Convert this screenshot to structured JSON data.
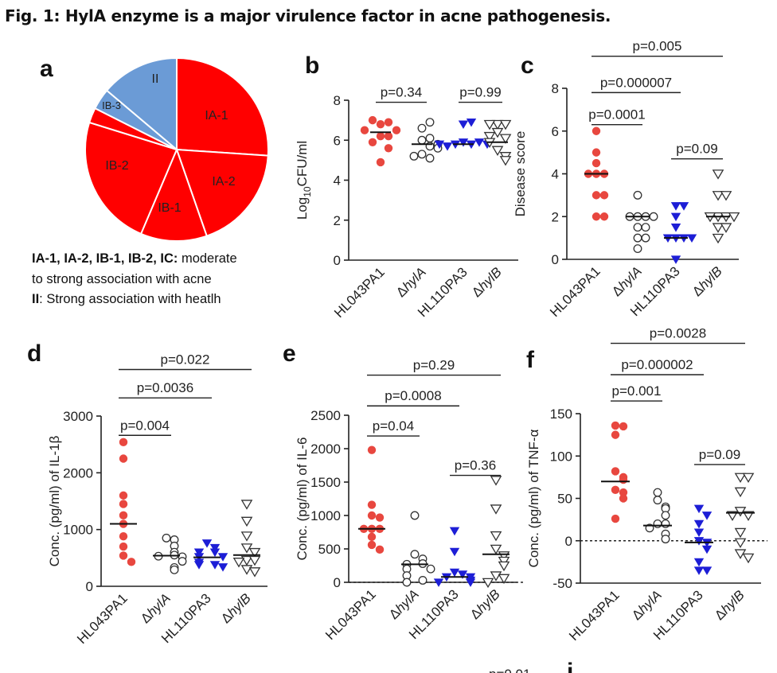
{
  "figure": {
    "title": "Fig. 1: HylA enzyme is a major virulence factor in acne pathogenesis.",
    "legend_line1_bold": "IA-1, IA-2, IB-1, IB-2, IC:",
    "legend_line1_rest": " moderate",
    "legend_line2": "to strong association with acne",
    "legend_line3_bold": "II",
    "legend_line3_rest": ": Strong association with heatlh",
    "bottom_cutoff_text": "p=0.01",
    "bottom_cutoff_letter": "i"
  },
  "colors": {
    "red": "#e8473f",
    "blue": "#1d1ed6",
    "pie_red": "#ff0000",
    "pie_blue": "#6b9bd6"
  },
  "chart_data": [
    {
      "panel": "a",
      "type": "pie",
      "slices": [
        {
          "label": "IA-1",
          "value": 24.5,
          "color": "pie_red"
        },
        {
          "label": "IA-2",
          "value": 17.5,
          "color": "pie_red"
        },
        {
          "label": "IB-1",
          "value": 11,
          "color": "pie_red"
        },
        {
          "label": "IB-2",
          "value": 22,
          "color": "pie_red"
        },
        {
          "label": "IC",
          "value": 2.5,
          "color": "pie_red"
        },
        {
          "label": "IB-3",
          "value": 3.5,
          "color": "pie_blue"
        },
        {
          "label": "II",
          "value": 13,
          "color": "pie_blue"
        }
      ]
    },
    {
      "panel": "b",
      "type": "scatter",
      "ylabel_main": "Log",
      "ylabel_sub": "10",
      "ylabel_rest": "CFU/ml",
      "ylim": [
        0,
        8
      ],
      "yticks": [
        0,
        2,
        4,
        6,
        8
      ],
      "categories": [
        "HL043PA1",
        "ΔhylA",
        "HL110PA3",
        "ΔhylB"
      ],
      "groups": [
        {
          "marker": "circle-filled",
          "color": "red",
          "median": 6.4,
          "values": [
            6.8,
            6.9,
            7.0,
            6.2,
            6.2,
            6.5,
            6.5,
            5.9,
            5.6,
            4.9
          ]
        },
        {
          "marker": "circle-open",
          "median": 5.8,
          "values": [
            6.6,
            6.9,
            6.0,
            6.1,
            5.7,
            5.8,
            5.3,
            5.6,
            5.1,
            5.2
          ]
        },
        {
          "marker": "tri-filled",
          "color": "blue",
          "median": 5.8,
          "values": [
            6.8,
            6.9,
            5.9,
            5.8,
            5.8,
            5.9,
            5.7,
            5.8,
            5.8
          ]
        },
        {
          "marker": "tri-open",
          "median": 5.9,
          "values": [
            6.8,
            6.8,
            6.8,
            6.4,
            6.1,
            6.2,
            5.9,
            5.5,
            5.2,
            5.0
          ]
        }
      ],
      "comparisons": [
        {
          "from": 0,
          "to": 1,
          "y": 7.9,
          "label": "p=0.34"
        },
        {
          "from": 2,
          "to": 3,
          "y": 7.9,
          "label": "p=0.99"
        }
      ]
    },
    {
      "panel": "c",
      "type": "scatter",
      "ylabel": "Disease score",
      "ylim": [
        0,
        8
      ],
      "yticks": [
        0,
        2,
        4,
        6,
        8
      ],
      "categories": [
        "HL043PA1",
        "ΔhylA",
        "HL110PA3",
        "ΔhylB"
      ],
      "groups": [
        {
          "marker": "circle-filled",
          "color": "red",
          "median": 4,
          "values": [
            6,
            5,
            4.5,
            4,
            4,
            4,
            3,
            3,
            2,
            2
          ]
        },
        {
          "marker": "circle-open",
          "median": 2,
          "values": [
            3,
            2,
            2,
            2,
            2,
            1.5,
            1.5,
            1,
            1,
            0.5
          ]
        },
        {
          "marker": "tri-filled",
          "color": "blue",
          "median": 1,
          "values": [
            2.5,
            2.5,
            2,
            1.5,
            1,
            1,
            1,
            1,
            0
          ]
        },
        {
          "marker": "tri-open",
          "median": 2,
          "values": [
            4,
            3,
            3,
            2,
            2,
            2,
            2,
            1.5,
            1.5,
            1
          ]
        }
      ],
      "comparisons": [
        {
          "from": 0,
          "to": 3,
          "y": 9.5,
          "label": "p=0.005"
        },
        {
          "from": 0,
          "to": 2,
          "y": 7.8,
          "label": "p=0.000007"
        },
        {
          "from": 0,
          "to": 1,
          "y": 6.3,
          "label": "p=0.0001"
        },
        {
          "from": 2,
          "to": 3,
          "y": 4.7,
          "label": "p=0.09"
        }
      ]
    },
    {
      "panel": "d",
      "type": "scatter",
      "ylabel": "Conc. (pg/ml) of IL-1β",
      "ylim": [
        0,
        3000
      ],
      "yticks": [
        0,
        1000,
        2000,
        3000
      ],
      "categories": [
        "HL043PA1",
        "ΔhylA",
        "HL110PA3",
        "ΔhylB"
      ],
      "groups": [
        {
          "marker": "circle-filled",
          "color": "red",
          "median": 1100,
          "values": [
            2540,
            2250,
            1600,
            1450,
            1250,
            1100,
            880,
            700,
            540,
            430
          ]
        },
        {
          "marker": "circle-open",
          "median": 540,
          "values": [
            850,
            820,
            710,
            600,
            550,
            530,
            520,
            440,
            330,
            290
          ]
        },
        {
          "marker": "tri-filled",
          "color": "blue",
          "median": 510,
          "values": [
            760,
            680,
            600,
            600,
            520,
            520,
            420,
            380,
            380,
            340
          ]
        },
        {
          "marker": "tri-open",
          "median": 550,
          "values": [
            1450,
            1150,
            890,
            680,
            600,
            460,
            460,
            430,
            300,
            260
          ]
        }
      ],
      "comparisons": [
        {
          "from": 0,
          "to": 3,
          "y": 3820,
          "label": "p=0.022"
        },
        {
          "from": 0,
          "to": 2,
          "y": 3320,
          "label": "p=0.0036"
        },
        {
          "from": 0,
          "to": 1,
          "y": 2660,
          "label": "p=0.004"
        }
      ]
    },
    {
      "panel": "e",
      "type": "scatter",
      "ylabel": "Conc. (pg/ml) of IL-6",
      "ylim": [
        0,
        2500
      ],
      "yticks": [
        0,
        500,
        1000,
        1500,
        2000,
        2500
      ],
      "baseline_dotted": 0,
      "categories": [
        "HL043PA1",
        "ΔhylA",
        "HL110PA3",
        "ΔhylB"
      ],
      "groups": [
        {
          "marker": "circle-filled",
          "color": "red",
          "median": 800,
          "values": [
            1980,
            1160,
            1000,
            970,
            800,
            800,
            800,
            680,
            560,
            490
          ]
        },
        {
          "marker": "circle-open",
          "median": 270,
          "values": [
            1000,
            420,
            350,
            280,
            270,
            200,
            200,
            100,
            30,
            0
          ]
        },
        {
          "marker": "tri-filled",
          "color": "blue",
          "median": 80,
          "values": [
            770,
            460,
            150,
            120,
            80,
            80,
            30,
            0,
            0
          ]
        },
        {
          "marker": "tri-open",
          "median": 420,
          "values": [
            1530,
            1100,
            700,
            500,
            400,
            320,
            250,
            100,
            60,
            0
          ]
        }
      ],
      "comparisons": [
        {
          "from": 0,
          "to": 3,
          "y": 3100,
          "label": "p=0.29"
        },
        {
          "from": 0,
          "to": 2,
          "y": 2640,
          "label": "p=0.0008"
        },
        {
          "from": 0,
          "to": 1,
          "y": 2190,
          "label": "p=0.04"
        },
        {
          "from": 2,
          "to": 3,
          "y": 1600,
          "label": "p=0.36"
        }
      ]
    },
    {
      "panel": "f",
      "type": "scatter",
      "ylabel": "Conc. (pg/ml) of TNF-α",
      "ylim": [
        -50,
        150
      ],
      "yticks": [
        -50,
        0,
        50,
        100,
        150
      ],
      "baseline_dotted": 0,
      "categories": [
        "HL043PA1",
        "ΔhylA",
        "HL110PA3",
        "ΔhylB"
      ],
      "groups": [
        {
          "marker": "circle-filled",
          "color": "red",
          "median": 70,
          "values": [
            136,
            135,
            125,
            82,
            75,
            72,
            60,
            57,
            50,
            26
          ]
        },
        {
          "marker": "circle-open",
          "median": 18,
          "values": [
            57,
            48,
            40,
            38,
            30,
            20,
            20,
            15,
            8,
            2
          ]
        },
        {
          "marker": "tri-filled",
          "color": "blue",
          "median": -2,
          "values": [
            38,
            30,
            20,
            10,
            0,
            -2,
            -10,
            -25,
            -35,
            -35
          ]
        },
        {
          "marker": "tri-open",
          "median": 33,
          "values": [
            75,
            75,
            58,
            35,
            30,
            30,
            10,
            -2,
            -15,
            -20
          ]
        }
      ],
      "comparisons": [
        {
          "from": 0,
          "to": 3,
          "y": 233,
          "label": "p=0.0028"
        },
        {
          "from": 0,
          "to": 2,
          "y": 196,
          "label": "p=0.000002"
        },
        {
          "from": 0,
          "to": 1,
          "y": 165,
          "label": "p=0.001"
        },
        {
          "from": 2,
          "to": 3,
          "y": 90,
          "label": "p=0.09"
        }
      ]
    }
  ]
}
